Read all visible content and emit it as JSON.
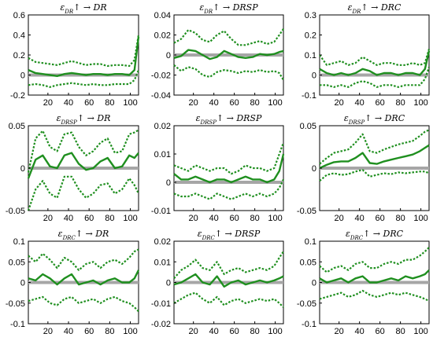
{
  "figure": {
    "colors": {
      "band": "#1f8f1f",
      "median": "#1f8f1f",
      "zero_line": "#a6a6a6",
      "frame": "#000000"
    }
  },
  "chart_data": [
    {
      "type": "line",
      "title": "ε_DR↑ → DR",
      "xlim": [
        1,
        108
      ],
      "ylim": [
        -0.2,
        0.6
      ],
      "xticks": [
        20,
        40,
        60,
        80,
        100
      ],
      "yticks": [
        -0.2,
        0,
        0.2,
        0.4,
        0.6
      ],
      "ytick_labels": [
        "-0.2",
        "0",
        "0.2",
        "0.4",
        "0.6"
      ],
      "x": [
        1,
        8,
        15,
        22,
        29,
        36,
        43,
        50,
        57,
        64,
        71,
        78,
        85,
        92,
        99,
        104,
        108
      ],
      "series": [
        {
          "style": "dotted",
          "values": [
            0.17,
            0.13,
            0.12,
            0.11,
            0.1,
            0.12,
            0.14,
            0.12,
            0.1,
            0.11,
            0.11,
            0.09,
            0.1,
            0.1,
            0.09,
            0.15,
            0.4
          ]
        },
        {
          "style": "solid",
          "values": [
            0.05,
            0.02,
            0.01,
            0.0,
            -0.01,
            0.01,
            0.02,
            0.01,
            0.0,
            0.01,
            0.01,
            0.0,
            0.01,
            0.01,
            0.0,
            0.05,
            0.38
          ]
        },
        {
          "style": "dotted",
          "values": [
            -0.1,
            -0.09,
            -0.1,
            -0.12,
            -0.1,
            -0.09,
            -0.08,
            -0.09,
            -0.1,
            -0.09,
            -0.1,
            -0.1,
            -0.09,
            -0.09,
            -0.09,
            -0.05,
            0.05
          ]
        }
      ]
    },
    {
      "type": "line",
      "title": "ε_DR↑ → DRSP",
      "xlim": [
        1,
        108
      ],
      "ylim": [
        -0.04,
        0.04
      ],
      "xticks": [
        20,
        40,
        60,
        80,
        100
      ],
      "yticks": [
        -0.04,
        -0.02,
        0,
        0.02,
        0.04
      ],
      "ytick_labels": [
        "-0.04",
        "-0.02",
        "0",
        "0.02",
        "0.04"
      ],
      "x": [
        1,
        8,
        15,
        22,
        29,
        36,
        43,
        50,
        57,
        64,
        71,
        78,
        85,
        92,
        99,
        104,
        108
      ],
      "series": [
        {
          "style": "dotted",
          "values": [
            0.012,
            0.016,
            0.025,
            0.022,
            0.015,
            0.013,
            0.02,
            0.024,
            0.016,
            0.01,
            0.01,
            0.012,
            0.014,
            0.011,
            0.013,
            0.02,
            0.026
          ]
        },
        {
          "style": "solid",
          "values": [
            -0.003,
            -0.001,
            0.005,
            0.004,
            0.0,
            -0.004,
            -0.002,
            0.004,
            0.001,
            -0.002,
            -0.003,
            -0.002,
            0.001,
            0.0,
            0.001,
            0.003,
            0.004
          ]
        },
        {
          "style": "dotted",
          "values": [
            -0.01,
            -0.016,
            -0.012,
            -0.014,
            -0.02,
            -0.022,
            -0.017,
            -0.015,
            -0.016,
            -0.018,
            -0.016,
            -0.017,
            -0.015,
            -0.017,
            -0.016,
            -0.018,
            -0.025
          ]
        }
      ]
    },
    {
      "type": "line",
      "title": "ε_DR↑ → DRC",
      "xlim": [
        1,
        108
      ],
      "ylim": [
        -0.1,
        0.3
      ],
      "xticks": [
        20,
        40,
        60,
        80,
        100
      ],
      "yticks": [
        -0.1,
        0,
        0.1,
        0.2,
        0.3
      ],
      "ytick_labels": [
        "-0.1",
        "0",
        "0.1",
        "0.2",
        "0.3"
      ],
      "x": [
        1,
        8,
        15,
        22,
        29,
        36,
        43,
        50,
        57,
        64,
        71,
        78,
        85,
        92,
        99,
        104,
        108
      ],
      "series": [
        {
          "style": "dotted",
          "values": [
            0.1,
            0.05,
            0.06,
            0.07,
            0.05,
            0.06,
            0.09,
            0.07,
            0.05,
            0.06,
            0.06,
            0.05,
            0.05,
            0.06,
            0.05,
            0.06,
            0.13
          ]
        },
        {
          "style": "solid",
          "values": [
            0.03,
            0.01,
            0.0,
            0.01,
            0.0,
            0.01,
            0.03,
            0.02,
            0.0,
            0.01,
            0.01,
            0.0,
            0.01,
            0.01,
            0.0,
            0.03,
            0.12
          ]
        },
        {
          "style": "dotted",
          "values": [
            -0.05,
            -0.05,
            -0.06,
            -0.05,
            -0.06,
            -0.04,
            -0.03,
            -0.04,
            -0.06,
            -0.05,
            -0.05,
            -0.06,
            -0.05,
            -0.05,
            -0.05,
            -0.02,
            0.04
          ]
        }
      ]
    },
    {
      "type": "line",
      "title": "ε_DRSP↑ → DR",
      "xlim": [
        1,
        108
      ],
      "ylim": [
        -0.05,
        0.05
      ],
      "xticks": [
        20,
        40,
        60,
        80,
        100
      ],
      "yticks": [
        -0.05,
        0,
        0.05
      ],
      "ytick_labels": [
        "-0.05",
        "0",
        "0.05"
      ],
      "x": [
        1,
        8,
        15,
        22,
        29,
        36,
        43,
        50,
        57,
        64,
        71,
        78,
        85,
        92,
        99,
        104,
        108
      ],
      "series": [
        {
          "style": "dotted",
          "values": [
            -0.005,
            0.035,
            0.044,
            0.025,
            0.02,
            0.04,
            0.042,
            0.025,
            0.015,
            0.02,
            0.03,
            0.035,
            0.018,
            0.02,
            0.04,
            0.042,
            0.045
          ]
        },
        {
          "style": "solid",
          "values": [
            -0.012,
            0.01,
            0.015,
            0.002,
            0.0,
            0.015,
            0.018,
            0.005,
            -0.002,
            0.0,
            0.008,
            0.012,
            0.0,
            0.002,
            0.015,
            0.012,
            0.018
          ]
        },
        {
          "style": "dotted",
          "values": [
            -0.05,
            -0.025,
            -0.015,
            -0.03,
            -0.035,
            -0.01,
            -0.01,
            -0.025,
            -0.035,
            -0.03,
            -0.02,
            -0.018,
            -0.03,
            -0.025,
            -0.012,
            -0.02,
            -0.03
          ]
        }
      ]
    },
    {
      "type": "line",
      "title": "ε_DRSP↑ → DRSP",
      "xlim": [
        1,
        108
      ],
      "ylim": [
        -0.01,
        0.02
      ],
      "xticks": [
        20,
        40,
        60,
        80,
        100
      ],
      "yticks": [
        -0.01,
        0,
        0.01,
        0.02
      ],
      "ytick_labels": [
        "-0.01",
        "0",
        "0.01",
        "0.02"
      ],
      "x": [
        1,
        8,
        15,
        22,
        29,
        36,
        43,
        50,
        57,
        64,
        71,
        78,
        85,
        92,
        99,
        104,
        108
      ],
      "series": [
        {
          "style": "dotted",
          "values": [
            0.006,
            0.005,
            0.004,
            0.006,
            0.005,
            0.004,
            0.005,
            0.005,
            0.003,
            0.004,
            0.006,
            0.005,
            0.005,
            0.004,
            0.005,
            0.01,
            0.014
          ]
        },
        {
          "style": "solid",
          "values": [
            0.003,
            0.001,
            0.001,
            0.002,
            0.001,
            0.0,
            0.001,
            0.001,
            0.0,
            0.001,
            0.002,
            0.001,
            0.001,
            0.0,
            0.001,
            0.004,
            0.01
          ]
        },
        {
          "style": "dotted",
          "values": [
            -0.004,
            -0.005,
            -0.005,
            -0.004,
            -0.005,
            -0.006,
            -0.004,
            -0.005,
            -0.006,
            -0.005,
            -0.004,
            -0.005,
            -0.004,
            -0.005,
            -0.004,
            -0.002,
            0.001
          ]
        }
      ]
    },
    {
      "type": "line",
      "title": "ε_DRSP↑ → DRC",
      "xlim": [
        1,
        108
      ],
      "ylim": [
        -0.05,
        0.05
      ],
      "xticks": [
        20,
        40,
        60,
        80,
        100
      ],
      "yticks": [
        -0.05,
        0,
        0.05
      ],
      "ytick_labels": [
        "-0.05",
        "0",
        "0.05"
      ],
      "x": [
        1,
        8,
        15,
        22,
        29,
        36,
        43,
        50,
        57,
        64,
        71,
        78,
        85,
        92,
        99,
        104,
        108
      ],
      "series": [
        {
          "style": "dotted",
          "values": [
            0.005,
            0.012,
            0.018,
            0.02,
            0.022,
            0.03,
            0.04,
            0.02,
            0.018,
            0.022,
            0.025,
            0.028,
            0.03,
            0.032,
            0.038,
            0.043,
            0.045
          ]
        },
        {
          "style": "solid",
          "values": [
            0.0,
            0.004,
            0.007,
            0.008,
            0.008,
            0.012,
            0.018,
            0.006,
            0.005,
            0.008,
            0.01,
            0.012,
            0.014,
            0.016,
            0.02,
            0.024,
            0.027
          ]
        },
        {
          "style": "dotted",
          "values": [
            -0.015,
            -0.008,
            -0.006,
            -0.008,
            -0.007,
            -0.004,
            -0.002,
            -0.01,
            -0.008,
            -0.006,
            -0.007,
            -0.005,
            -0.006,
            -0.005,
            -0.004,
            -0.004,
            -0.006
          ]
        }
      ]
    },
    {
      "type": "line",
      "title": "ε_DRC↑ → DR",
      "xlim": [
        1,
        108
      ],
      "ylim": [
        -0.1,
        0.1
      ],
      "xticks": [
        20,
        40,
        60,
        80,
        100
      ],
      "yticks": [
        -0.1,
        -0.05,
        0,
        0.05,
        0.1
      ],
      "ytick_labels": [
        "-0.1",
        "-0.05",
        "0",
        "0.05",
        "0.1"
      ],
      "x": [
        1,
        8,
        15,
        22,
        29,
        36,
        43,
        50,
        57,
        64,
        71,
        78,
        85,
        92,
        99,
        104,
        108
      ],
      "series": [
        {
          "style": "dotted",
          "values": [
            0.065,
            0.05,
            0.07,
            0.055,
            0.035,
            0.06,
            0.05,
            0.03,
            0.045,
            0.05,
            0.035,
            0.05,
            0.055,
            0.045,
            0.06,
            0.075,
            0.08
          ]
        },
        {
          "style": "solid",
          "values": [
            0.01,
            0.005,
            0.02,
            0.01,
            -0.005,
            0.01,
            0.02,
            -0.005,
            0.0,
            0.005,
            -0.005,
            0.005,
            0.01,
            0.0,
            0.0,
            0.01,
            0.03
          ]
        },
        {
          "style": "dotted",
          "values": [
            -0.045,
            -0.04,
            -0.035,
            -0.05,
            -0.055,
            -0.04,
            -0.035,
            -0.05,
            -0.045,
            -0.04,
            -0.05,
            -0.04,
            -0.035,
            -0.045,
            -0.05,
            -0.06,
            -0.07
          ]
        }
      ]
    },
    {
      "type": "line",
      "title": "ε_DRC↑ → DRSP",
      "xlim": [
        1,
        108
      ],
      "ylim": [
        -0.02,
        0.02
      ],
      "xticks": [
        20,
        40,
        60,
        80,
        100
      ],
      "yticks": [
        -0.02,
        -0.01,
        0,
        0.01,
        0.02
      ],
      "ytick_labels": [
        "-0.02",
        "-0.01",
        "0",
        "0.01",
        "0.02"
      ],
      "x": [
        1,
        8,
        15,
        22,
        29,
        36,
        43,
        50,
        57,
        64,
        71,
        78,
        85,
        92,
        99,
        104,
        108
      ],
      "series": [
        {
          "style": "dotted",
          "values": [
            0.002,
            0.006,
            0.008,
            0.011,
            0.007,
            0.006,
            0.01,
            0.004,
            0.006,
            0.007,
            0.005,
            0.006,
            0.007,
            0.006,
            0.008,
            0.012,
            0.015
          ]
        },
        {
          "style": "solid",
          "values": [
            -0.001,
            0.0,
            0.002,
            0.004,
            0.0,
            -0.001,
            0.003,
            -0.002,
            0.0,
            0.001,
            -0.001,
            0.0,
            0.001,
            0.0,
            0.001,
            0.002,
            0.003
          ]
        },
        {
          "style": "dotted",
          "values": [
            -0.01,
            -0.008,
            -0.006,
            -0.005,
            -0.008,
            -0.01,
            -0.007,
            -0.011,
            -0.009,
            -0.008,
            -0.01,
            -0.009,
            -0.008,
            -0.009,
            -0.008,
            -0.01,
            -0.012
          ]
        }
      ]
    },
    {
      "type": "line",
      "title": "ε_DRC↑ → DRC",
      "xlim": [
        1,
        108
      ],
      "ylim": [
        -0.1,
        0.1
      ],
      "xticks": [
        20,
        40,
        60,
        80,
        100
      ],
      "yticks": [
        -0.1,
        -0.05,
        0,
        0.05,
        0.1
      ],
      "ytick_labels": [
        "-0.1",
        "-0.05",
        "0",
        "0.05",
        "0.1"
      ],
      "x": [
        1,
        8,
        15,
        22,
        29,
        36,
        43,
        50,
        57,
        64,
        71,
        78,
        85,
        92,
        99,
        104,
        108
      ],
      "series": [
        {
          "style": "dotted",
          "values": [
            0.04,
            0.025,
            0.035,
            0.04,
            0.03,
            0.045,
            0.05,
            0.035,
            0.035,
            0.045,
            0.05,
            0.045,
            0.055,
            0.055,
            0.065,
            0.075,
            0.085
          ]
        },
        {
          "style": "solid",
          "values": [
            0.01,
            0.0,
            0.005,
            0.01,
            0.0,
            0.01,
            0.015,
            0.0,
            0.0,
            0.005,
            0.01,
            0.005,
            0.015,
            0.01,
            0.015,
            0.02,
            0.03
          ]
        },
        {
          "style": "dotted",
          "values": [
            -0.04,
            -0.035,
            -0.03,
            -0.025,
            -0.035,
            -0.03,
            -0.02,
            -0.03,
            -0.035,
            -0.03,
            -0.025,
            -0.03,
            -0.025,
            -0.03,
            -0.035,
            -0.04,
            -0.045
          ]
        }
      ]
    }
  ]
}
